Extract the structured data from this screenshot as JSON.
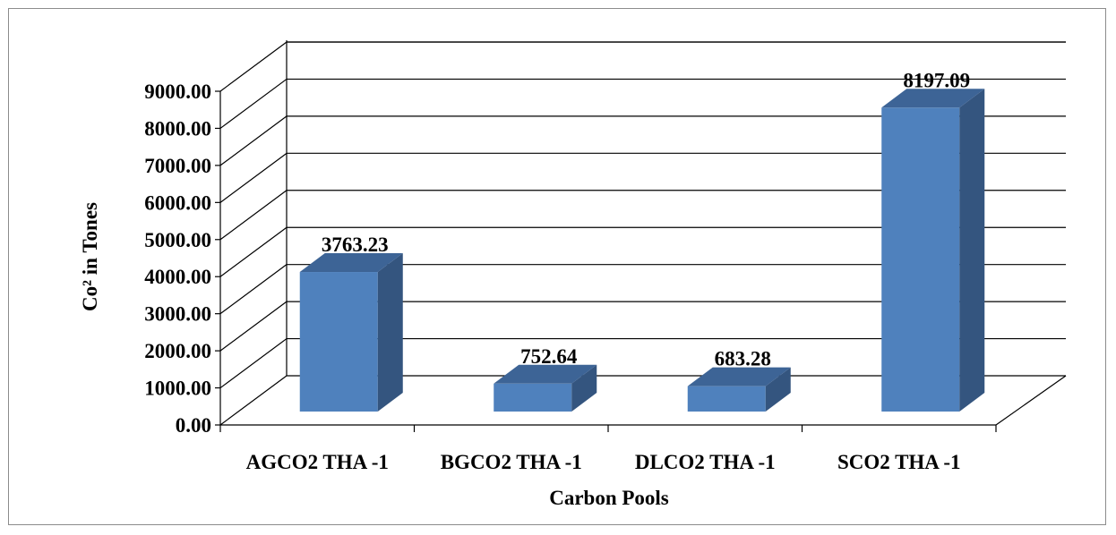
{
  "chart_data": {
    "type": "bar",
    "style": "3d-column",
    "categories": [
      "AGCO2 THA -1",
      "BGCO2 THA -1",
      "DLCO2 THA -1",
      "SCO2 THA -1"
    ],
    "values": [
      3763.23,
      752.64,
      683.28,
      8197.09
    ],
    "data_labels": [
      "3763.23",
      "752.64",
      "683.28",
      "8197.09"
    ],
    "y_ticks": [
      "0.00",
      "1000.00",
      "2000.00",
      "3000.00",
      "4000.00",
      "5000.00",
      "6000.00",
      "7000.00",
      "8000.00",
      "9000.00"
    ],
    "ylim": [
      0,
      9000
    ],
    "ylabel": "Co² in Tones",
    "xlabel": "Carbon Pools",
    "title": "",
    "grid": true,
    "legend": "none",
    "colors": {
      "bar_front": "#4f81bd",
      "bar_side": "#34557f",
      "bar_top": "#3d6496",
      "grid": "#000000"
    }
  }
}
